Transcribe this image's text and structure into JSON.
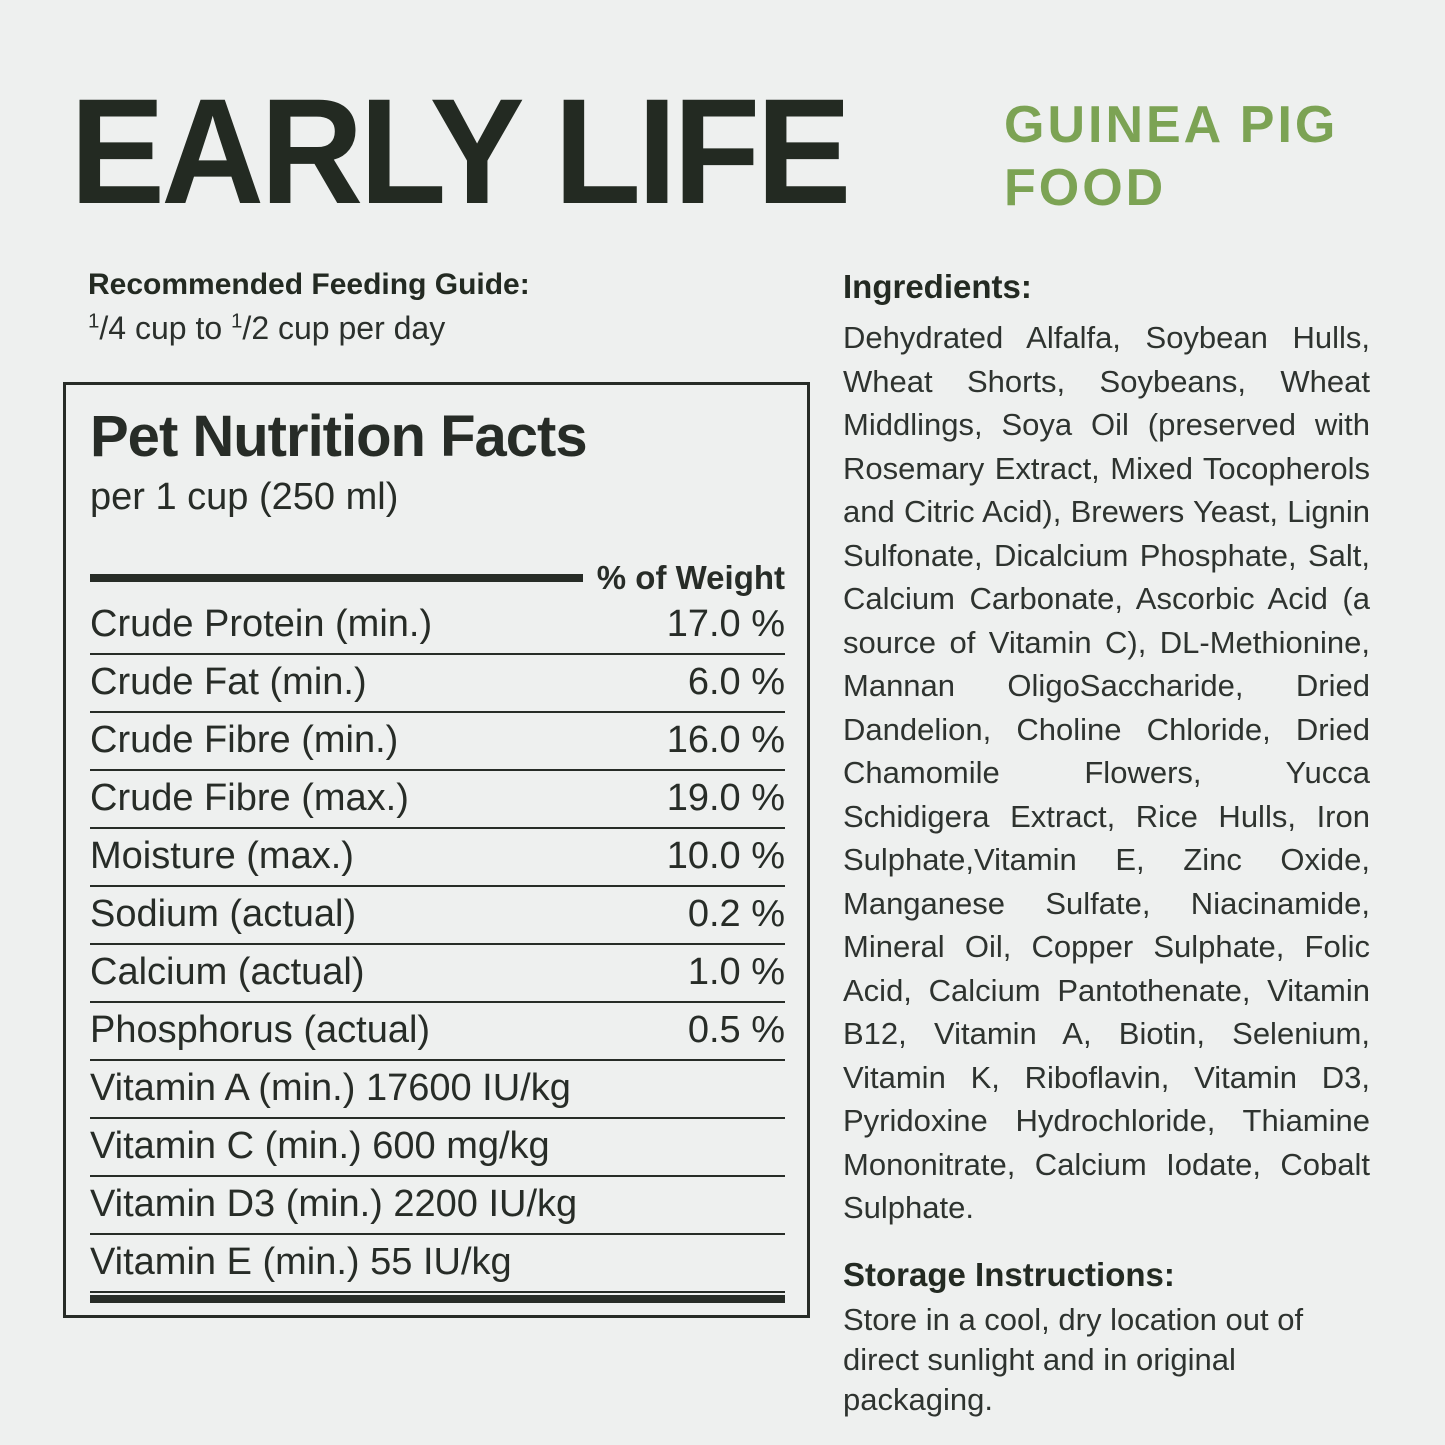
{
  "colors": {
    "background": "#eef0ef",
    "ink_dark": "#232a22",
    "panel_ink": "#272c27",
    "accent_green": "#7ca354"
  },
  "header": {
    "title": "EARLY LIFE",
    "subtitle": "GUINEA PIG\nFOOD"
  },
  "feeding_guide": {
    "heading": "Recommended Feeding Guide:",
    "frac1_sup": "1",
    "frac1_text": "/4 cup to ",
    "frac2_sup": "1",
    "frac2_text": "/2 cup per day"
  },
  "nutrition": {
    "title": "Pet Nutrition Facts",
    "serving": "per 1 cup (250 ml)",
    "column_header": "% of Weight",
    "rows": [
      {
        "label": "Crude Protein (min.)",
        "value": "17.0 %"
      },
      {
        "label": "Crude Fat (min.)",
        "value": "6.0 %"
      },
      {
        "label": "Crude Fibre (min.)",
        "value": "16.0 %"
      },
      {
        "label": "Crude Fibre (max.)",
        "value": "19.0 %"
      },
      {
        "label": "Moisture (max.)",
        "value": "10.0 %"
      },
      {
        "label": "Sodium (actual)",
        "value": "0.2 %"
      },
      {
        "label": "Calcium (actual)",
        "value": "1.0 %"
      },
      {
        "label": "Phosphorus (actual)",
        "value": "0.5 %"
      },
      {
        "label": "Vitamin A (min.) 17600 IU/kg",
        "value": ""
      },
      {
        "label": "Vitamin C (min.) 600 mg/kg",
        "value": ""
      },
      {
        "label": "Vitamin D3 (min.) 2200 IU/kg",
        "value": ""
      },
      {
        "label": "Vitamin E (min.) 55 IU/kg",
        "value": ""
      }
    ]
  },
  "ingredients": {
    "heading": "Ingredients:",
    "text": "Dehydrated Alfalfa, Soybean Hulls, Wheat Shorts, Soybeans, Wheat Middlings, Soya Oil (preserved with Rosemary Extract, Mixed Tocopherols and Citric Acid), Brewers Yeast, Lignin Sulfonate, Dicalcium Phosphate, Salt, Calcium Carbonate, Ascorbic Acid (a source of Vitamin C), DL-Methionine, Mannan OligoSaccharide, Dried Dandelion, Choline Chloride, Dried Chamomile Flowers, Yucca Schidigera Extract, Rice Hulls, Iron Sulphate,Vitamin E, Zinc Oxide, Manganese Sulfate, Niacinamide, Mineral Oil, Copper Sulphate, Folic Acid, Calcium Pantothenate, Vitamin B12, Vitamin A, Biotin, Selenium, Vitamin K, Riboflavin, Vitamin D3, Pyridoxine Hydrochloride, Thiamine Mononitrate, Calcium Iodate, Cobalt Sulphate."
  },
  "storage": {
    "heading": "Storage Instructions:",
    "text": "Store in a cool, dry location out of direct sunlight and in original packaging."
  }
}
